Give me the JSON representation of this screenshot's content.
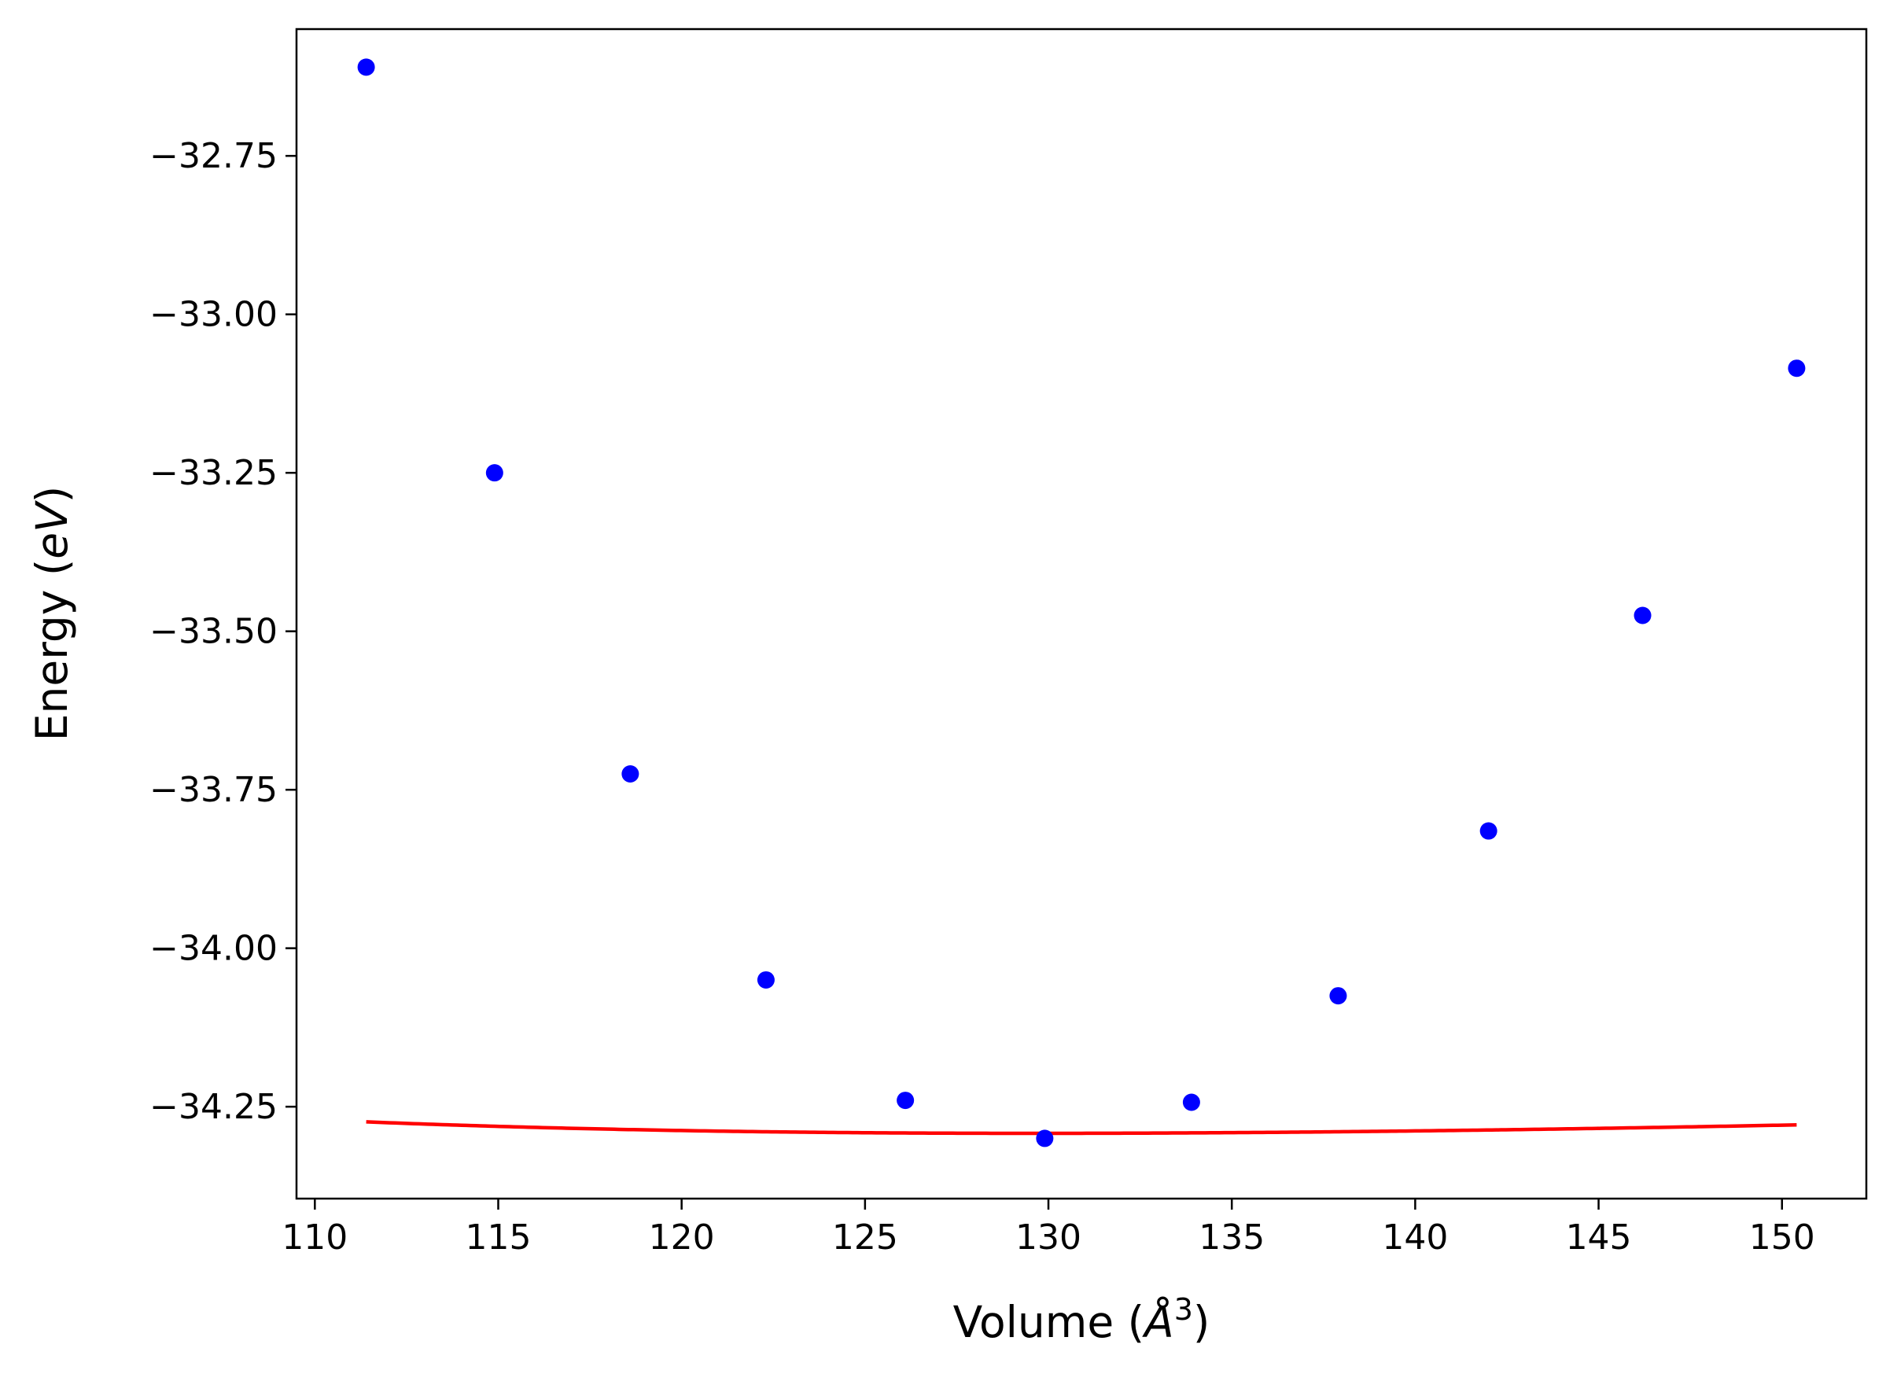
{
  "chart_data": {
    "type": "scatter",
    "xlabel_parts": [
      "Volume (",
      "Å",
      "3",
      ")"
    ],
    "ylabel_parts": [
      "Energy (",
      "eV",
      ")"
    ],
    "xlim": [
      109.5,
      152.3
    ],
    "ylim": [
      -34.395,
      -32.55
    ],
    "xticks": [
      110,
      115,
      120,
      125,
      130,
      135,
      140,
      145,
      150
    ],
    "xtick_labels": [
      "110",
      "115",
      "120",
      "125",
      "130",
      "135",
      "140",
      "145",
      "150"
    ],
    "yticks": [
      -32.75,
      -33.0,
      -33.25,
      -33.5,
      -33.75,
      -34.0,
      -34.25
    ],
    "ytick_labels": [
      "−32.75",
      "−33.00",
      "−33.25",
      "−33.50",
      "−33.75",
      "−34.00",
      "−34.25"
    ],
    "series": [
      {
        "kind": "points",
        "color": "#0000ff",
        "x": [
          111.4,
          114.9,
          118.6,
          122.3,
          126.1,
          129.9,
          133.9,
          137.9,
          142.0,
          146.2,
          150.4
        ],
        "y": [
          -32.61,
          -33.25,
          -33.725,
          -34.05,
          -34.24,
          -34.3,
          -34.243,
          -34.075,
          -33.815,
          -33.475,
          -33.085
        ]
      },
      {
        "kind": "fit-line",
        "color": "#ff0000",
        "curve_model": {
          "E0": -34.292,
          "V0": 129.65,
          "B0": 0.0106,
          "B0_prime": 4.6,
          "x_range": [
            111.4,
            150.4
          ]
        }
      }
    ],
    "grid": false,
    "legend": "none"
  },
  "colors": {
    "background": "#ffffff",
    "axes": "#000000",
    "points": "#0000ff",
    "fit": "#ff0000"
  }
}
